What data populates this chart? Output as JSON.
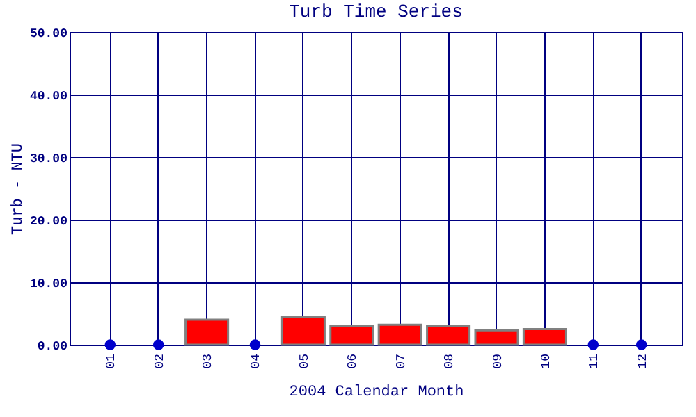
{
  "chart_data": {
    "type": "bar",
    "title": "Turb Time Series",
    "xlabel": "2004 Calendar Month",
    "ylabel": "Turb - NTU",
    "categories": [
      "01",
      "02",
      "03",
      "04",
      "05",
      "06",
      "07",
      "08",
      "09",
      "10",
      "11",
      "12"
    ],
    "series": [
      {
        "color": "#ff0000",
        "values": [
          null,
          null,
          4.0,
          null,
          4.5,
          3.0,
          3.2,
          3.0,
          2.3,
          2.5,
          null,
          null
        ]
      },
      {
        "type": "scatter",
        "color": "#0000cc",
        "values": [
          0,
          0,
          null,
          0,
          null,
          null,
          null,
          null,
          null,
          null,
          0,
          0
        ]
      }
    ],
    "ylim": [
      0,
      50
    ],
    "yticks": [
      {
        "value": 0,
        "label": "0.00"
      },
      {
        "value": 10,
        "label": "10.00"
      },
      {
        "value": 20,
        "label": "20.00"
      },
      {
        "value": 30,
        "label": "30.00"
      },
      {
        "value": 40,
        "label": "40.00"
      },
      {
        "value": 50,
        "label": "50.00"
      }
    ],
    "grid": true,
    "marker": "circle"
  }
}
